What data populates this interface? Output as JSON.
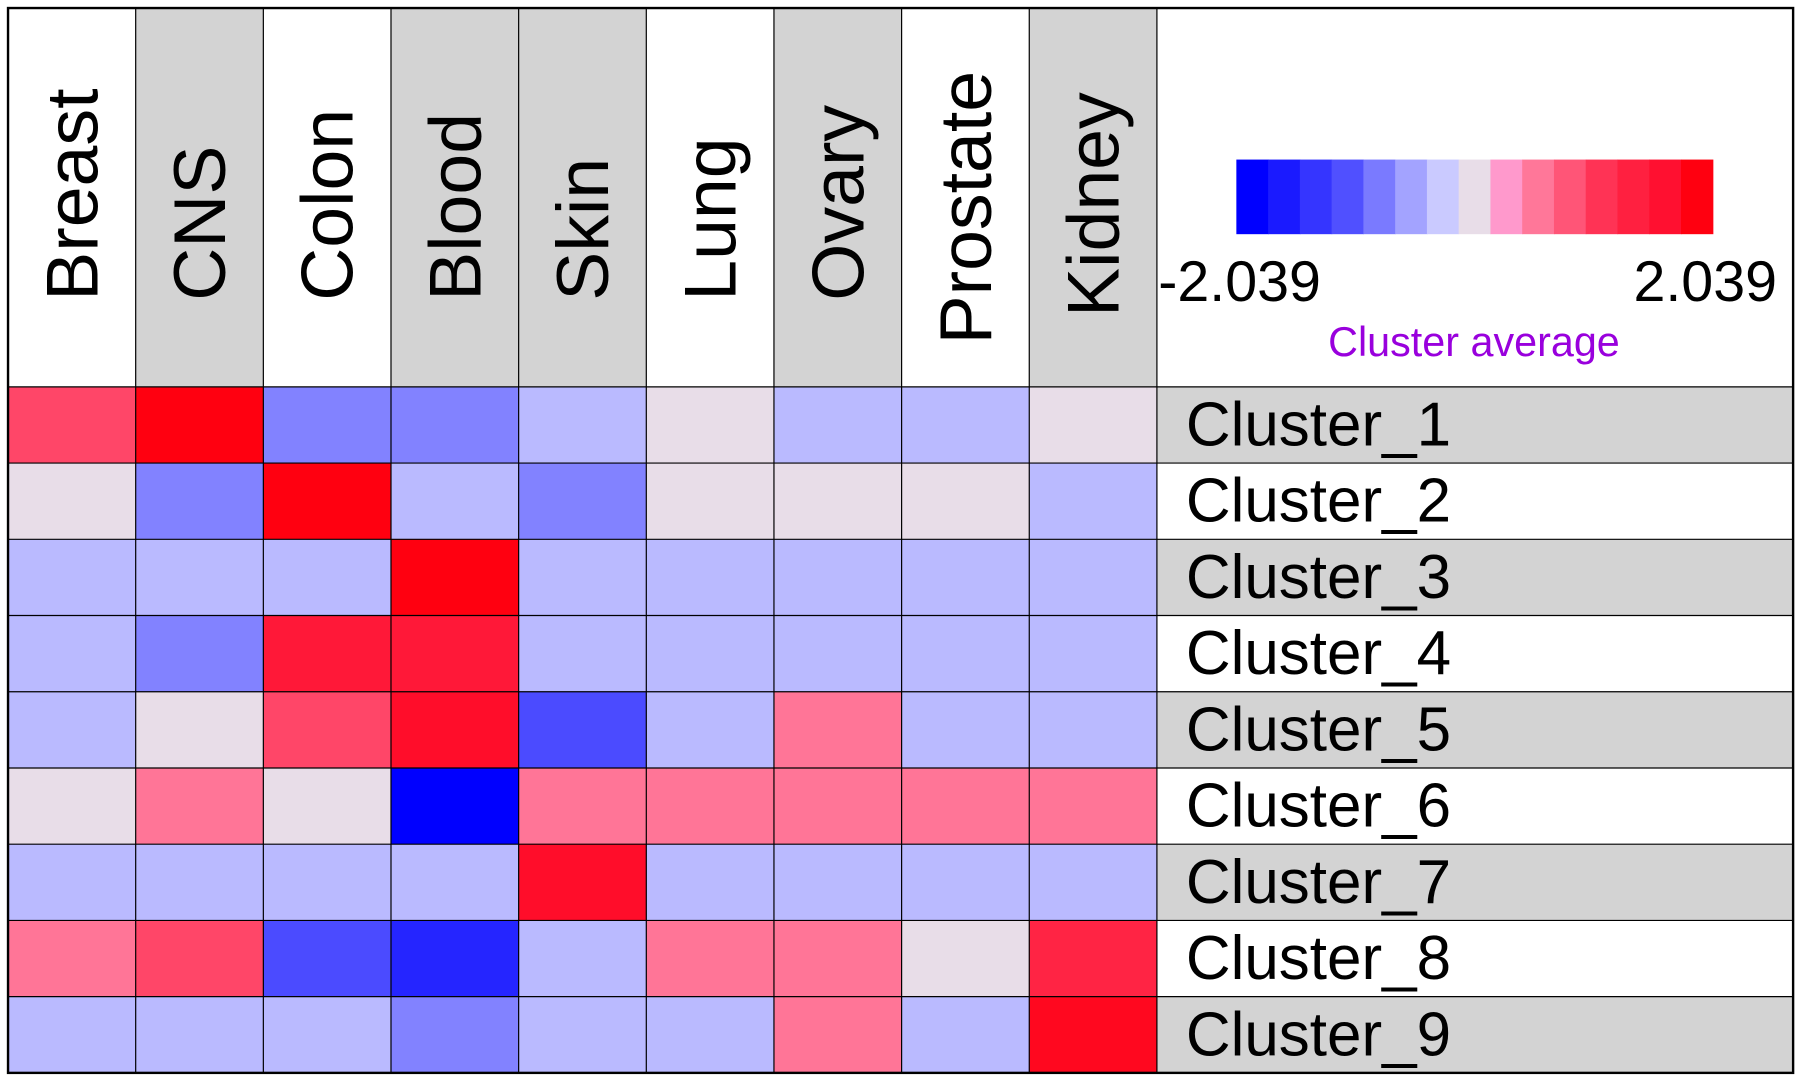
{
  "chart_data": {
    "type": "heatmap",
    "title": "",
    "columns": [
      "Breast",
      "CNS",
      "Colon",
      "Blood",
      "Skin",
      "Lung",
      "Ovary",
      "Prostate",
      "Kidney"
    ],
    "rows": [
      "Cluster_1",
      "Cluster_2",
      "Cluster_3",
      "Cluster_4",
      "Cluster_5",
      "Cluster_6",
      "Cluster_7",
      "Cluster_8",
      "Cluster_9"
    ],
    "values": [
      [
        1.0,
        2.04,
        -0.82,
        -0.82,
        -0.41,
        0.0,
        -0.41,
        -0.41,
        0.0
      ],
      [
        0.0,
        -0.82,
        2.04,
        -0.41,
        -0.82,
        0.0,
        0.0,
        0.0,
        -0.41
      ],
      [
        -0.41,
        -0.41,
        -0.41,
        2.04,
        -0.41,
        -0.41,
        -0.41,
        -0.41,
        -0.41
      ],
      [
        -0.41,
        -0.82,
        1.6,
        1.6,
        -0.41,
        -0.41,
        -0.41,
        -0.41,
        -0.41
      ],
      [
        -0.41,
        0.0,
        1.0,
        1.8,
        -1.22,
        -0.41,
        0.6,
        -0.41,
        -0.41
      ],
      [
        0.0,
        0.6,
        0.0,
        -2.04,
        0.6,
        0.6,
        0.6,
        0.6,
        0.6
      ],
      [
        -0.41,
        -0.41,
        -0.41,
        -0.41,
        1.8,
        -0.41,
        -0.41,
        -0.41,
        -0.41
      ],
      [
        0.6,
        1.0,
        -1.22,
        -1.63,
        -0.41,
        0.6,
        0.6,
        0.0,
        1.4
      ],
      [
        -0.41,
        -0.41,
        -0.41,
        -0.82,
        -0.41,
        -0.41,
        0.6,
        -0.41,
        1.9
      ]
    ],
    "color_scale": {
      "min": -2.039,
      "max": 2.039,
      "min_label": "-2.039",
      "max_label": "2.039",
      "title": "Cluster average",
      "title_color": "#9900dd",
      "stops": [
        "#0000ff",
        "#1a1aff",
        "#3535ff",
        "#5050ff",
        "#7a7aff",
        "#a3a3ff",
        "#cacaff",
        "#e8dde8",
        "#ff99cc",
        "#ff7799",
        "#ff5577",
        "#ff3355",
        "#ff2040",
        "#ff1030",
        "#ff0010"
      ]
    },
    "column_header_backgrounds": [
      "#ffffff",
      "#d3d3d3",
      "#ffffff",
      "#d3d3d3",
      "#d3d3d3",
      "#ffffff",
      "#d3d3d3",
      "#ffffff",
      "#d3d3d3"
    ],
    "row_label_backgrounds": [
      "#d3d3d3",
      "#ffffff",
      "#d3d3d3",
      "#ffffff",
      "#d3d3d3",
      "#ffffff",
      "#d3d3d3",
      "#ffffff",
      "#d3d3d3"
    ]
  }
}
